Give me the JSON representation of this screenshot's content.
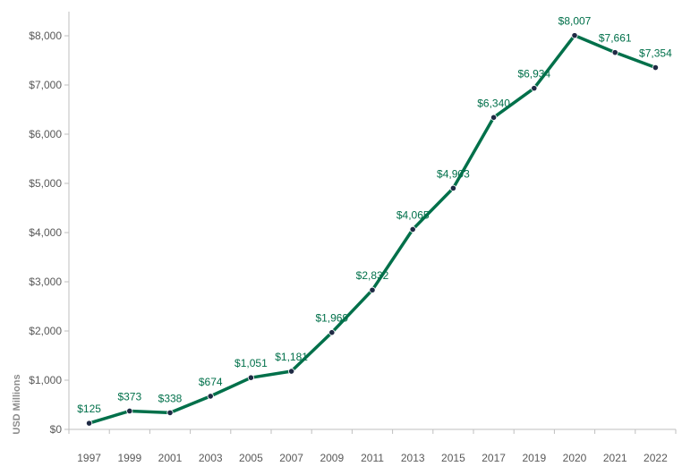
{
  "chart_data": {
    "type": "line",
    "title": "",
    "xlabel": "",
    "ylabel": "USD Millions",
    "x": [
      "1997",
      "1999",
      "2001",
      "2003",
      "2005",
      "2007",
      "2009",
      "2011",
      "2013",
      "2015",
      "2017",
      "2019",
      "2020",
      "2021",
      "2022"
    ],
    "series": [
      {
        "values": [
          125,
          373,
          338,
          674,
          1051,
          1181,
          1969,
          2832,
          4065,
          4903,
          6340,
          6934,
          8007,
          7661,
          7354
        ],
        "labels": [
          "$125",
          "$373",
          "$338",
          "$674",
          "$1,051",
          "$1,181",
          "$1,969",
          "$2,832",
          "$4,065",
          "$4,903",
          "$6,340",
          "$6,934",
          "$8,007",
          "$7,661",
          "$7,354"
        ]
      }
    ],
    "ylim": [
      0,
      8000
    ],
    "yticks": [
      0,
      1000,
      2000,
      3000,
      4000,
      5000,
      6000,
      7000,
      8000
    ],
    "ytick_labels": [
      "$0",
      "$1,000",
      "$2,000",
      "$3,000",
      "$4,000",
      "$5,000",
      "$6,000",
      "$7,000",
      "$8,000"
    ],
    "grid": false,
    "legend": "none",
    "colors": {
      "line": "#00704A",
      "marker": "#1F2A44",
      "data_label": "#00704A",
      "axis": "#bfbfbf"
    }
  }
}
